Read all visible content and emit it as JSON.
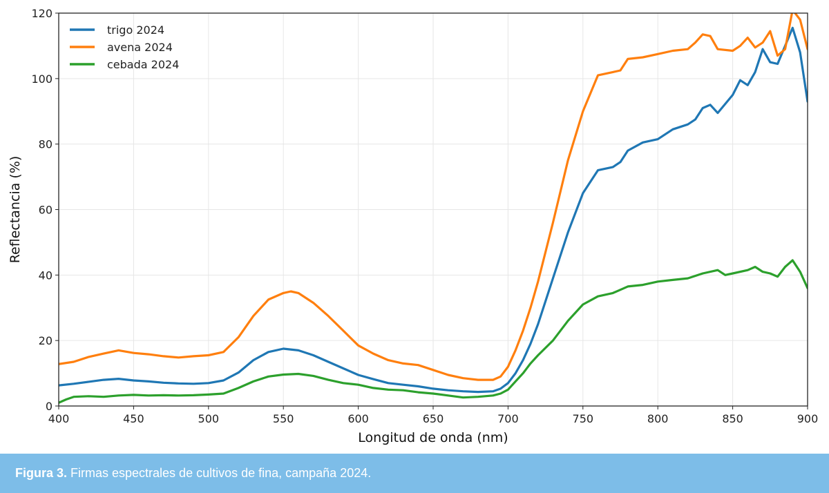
{
  "chart_data": {
    "type": "line",
    "xlabel": "Longitud de onda (nm)",
    "ylabel": "Reflectancia (%)",
    "xlim": [
      400,
      900
    ],
    "ylim": [
      0,
      120
    ],
    "xticks": [
      "400",
      "450",
      "500",
      "550",
      "600",
      "650",
      "700",
      "750",
      "800",
      "850",
      "900"
    ],
    "yticks": [
      "0",
      "20",
      "40",
      "60",
      "80",
      "100",
      "120"
    ],
    "grid": true,
    "legend_position": "top-left",
    "series": [
      {
        "name": "trigo 2024",
        "color": "#1f77b4",
        "x": [
          400,
          410,
          420,
          430,
          440,
          450,
          460,
          470,
          480,
          490,
          500,
          510,
          520,
          530,
          540,
          550,
          560,
          570,
          580,
          590,
          600,
          610,
          620,
          630,
          640,
          650,
          660,
          670,
          680,
          690,
          695,
          700,
          705,
          710,
          715,
          720,
          730,
          740,
          750,
          760,
          770,
          775,
          780,
          790,
          800,
          810,
          820,
          825,
          830,
          835,
          840,
          850,
          855,
          860,
          865,
          870,
          875,
          880,
          885,
          890,
          895,
          900
        ],
        "y": [
          6.3,
          6.8,
          7.4,
          8.0,
          8.3,
          7.8,
          7.5,
          7.1,
          6.9,
          6.8,
          7.0,
          7.8,
          10.2,
          14.0,
          16.5,
          17.5,
          17.0,
          15.5,
          13.5,
          11.5,
          9.5,
          8.2,
          7.0,
          6.5,
          6.0,
          5.3,
          4.8,
          4.5,
          4.3,
          4.5,
          5.3,
          7.0,
          10.0,
          14.0,
          19.0,
          25.0,
          39.0,
          53.0,
          65.0,
          72.0,
          73.0,
          74.5,
          78.0,
          80.5,
          81.5,
          84.5,
          86.0,
          87.5,
          91.0,
          92.0,
          89.5,
          95.0,
          99.5,
          98.0,
          102.0,
          109.0,
          105.0,
          104.5,
          110.0,
          115.5,
          108.0,
          93.0
        ]
      },
      {
        "name": "avena 2024",
        "color": "#ff7f0e",
        "x": [
          400,
          410,
          420,
          430,
          440,
          450,
          460,
          470,
          480,
          490,
          500,
          510,
          520,
          530,
          540,
          550,
          555,
          560,
          570,
          580,
          590,
          600,
          610,
          620,
          630,
          640,
          650,
          660,
          670,
          680,
          690,
          695,
          700,
          705,
          710,
          715,
          720,
          730,
          740,
          750,
          760,
          770,
          775,
          780,
          790,
          800,
          810,
          820,
          825,
          830,
          835,
          840,
          850,
          855,
          860,
          865,
          870,
          875,
          880,
          885,
          890,
          895,
          900
        ],
        "y": [
          12.8,
          13.5,
          15.0,
          16.0,
          17.0,
          16.2,
          15.8,
          15.2,
          14.8,
          15.2,
          15.5,
          16.5,
          21.0,
          27.5,
          32.5,
          34.5,
          35.0,
          34.5,
          31.5,
          27.5,
          23.0,
          18.5,
          16.0,
          14.0,
          13.0,
          12.5,
          11.0,
          9.5,
          8.5,
          8.0,
          8.0,
          9.0,
          12.0,
          17.0,
          23.0,
          30.0,
          38.0,
          56.0,
          75.0,
          90.0,
          101.0,
          102.0,
          102.5,
          106.0,
          106.5,
          107.5,
          108.5,
          109.0,
          111.0,
          113.5,
          113.0,
          109.0,
          108.5,
          110.0,
          112.5,
          109.5,
          111.0,
          114.5,
          107.0,
          109.0,
          121.0,
          118.0,
          109.0
        ]
      },
      {
        "name": "cebada 2024",
        "color": "#2ca02c",
        "x": [
          400,
          405,
          410,
          420,
          430,
          440,
          450,
          460,
          470,
          480,
          490,
          500,
          510,
          520,
          530,
          540,
          550,
          560,
          570,
          580,
          590,
          600,
          610,
          620,
          630,
          640,
          650,
          660,
          670,
          680,
          690,
          695,
          700,
          705,
          710,
          715,
          720,
          730,
          740,
          750,
          760,
          770,
          775,
          780,
          790,
          800,
          810,
          820,
          830,
          840,
          845,
          850,
          860,
          865,
          870,
          875,
          880,
          885,
          890,
          895,
          900
        ],
        "y": [
          1.0,
          2.0,
          2.8,
          3.0,
          2.8,
          3.2,
          3.4,
          3.2,
          3.3,
          3.2,
          3.3,
          3.5,
          3.8,
          5.5,
          7.5,
          9.0,
          9.6,
          9.8,
          9.2,
          8.0,
          7.0,
          6.5,
          5.5,
          5.0,
          4.8,
          4.2,
          3.8,
          3.2,
          2.6,
          2.8,
          3.2,
          3.8,
          5.0,
          7.5,
          10.0,
          13.0,
          15.5,
          20.0,
          26.0,
          31.0,
          33.5,
          34.5,
          35.5,
          36.5,
          37.0,
          38.0,
          38.5,
          39.0,
          40.5,
          41.5,
          40.0,
          40.5,
          41.5,
          42.5,
          41.0,
          40.5,
          39.5,
          42.5,
          44.5,
          41.0,
          36.0
        ]
      }
    ]
  },
  "caption": {
    "label": "Figura 3.",
    "text": " Firmas espectrales de cultivos de fina, campaña 2024."
  },
  "colors": {
    "caption_bg": "#7dbde8",
    "grid": "#e6e6e6"
  }
}
